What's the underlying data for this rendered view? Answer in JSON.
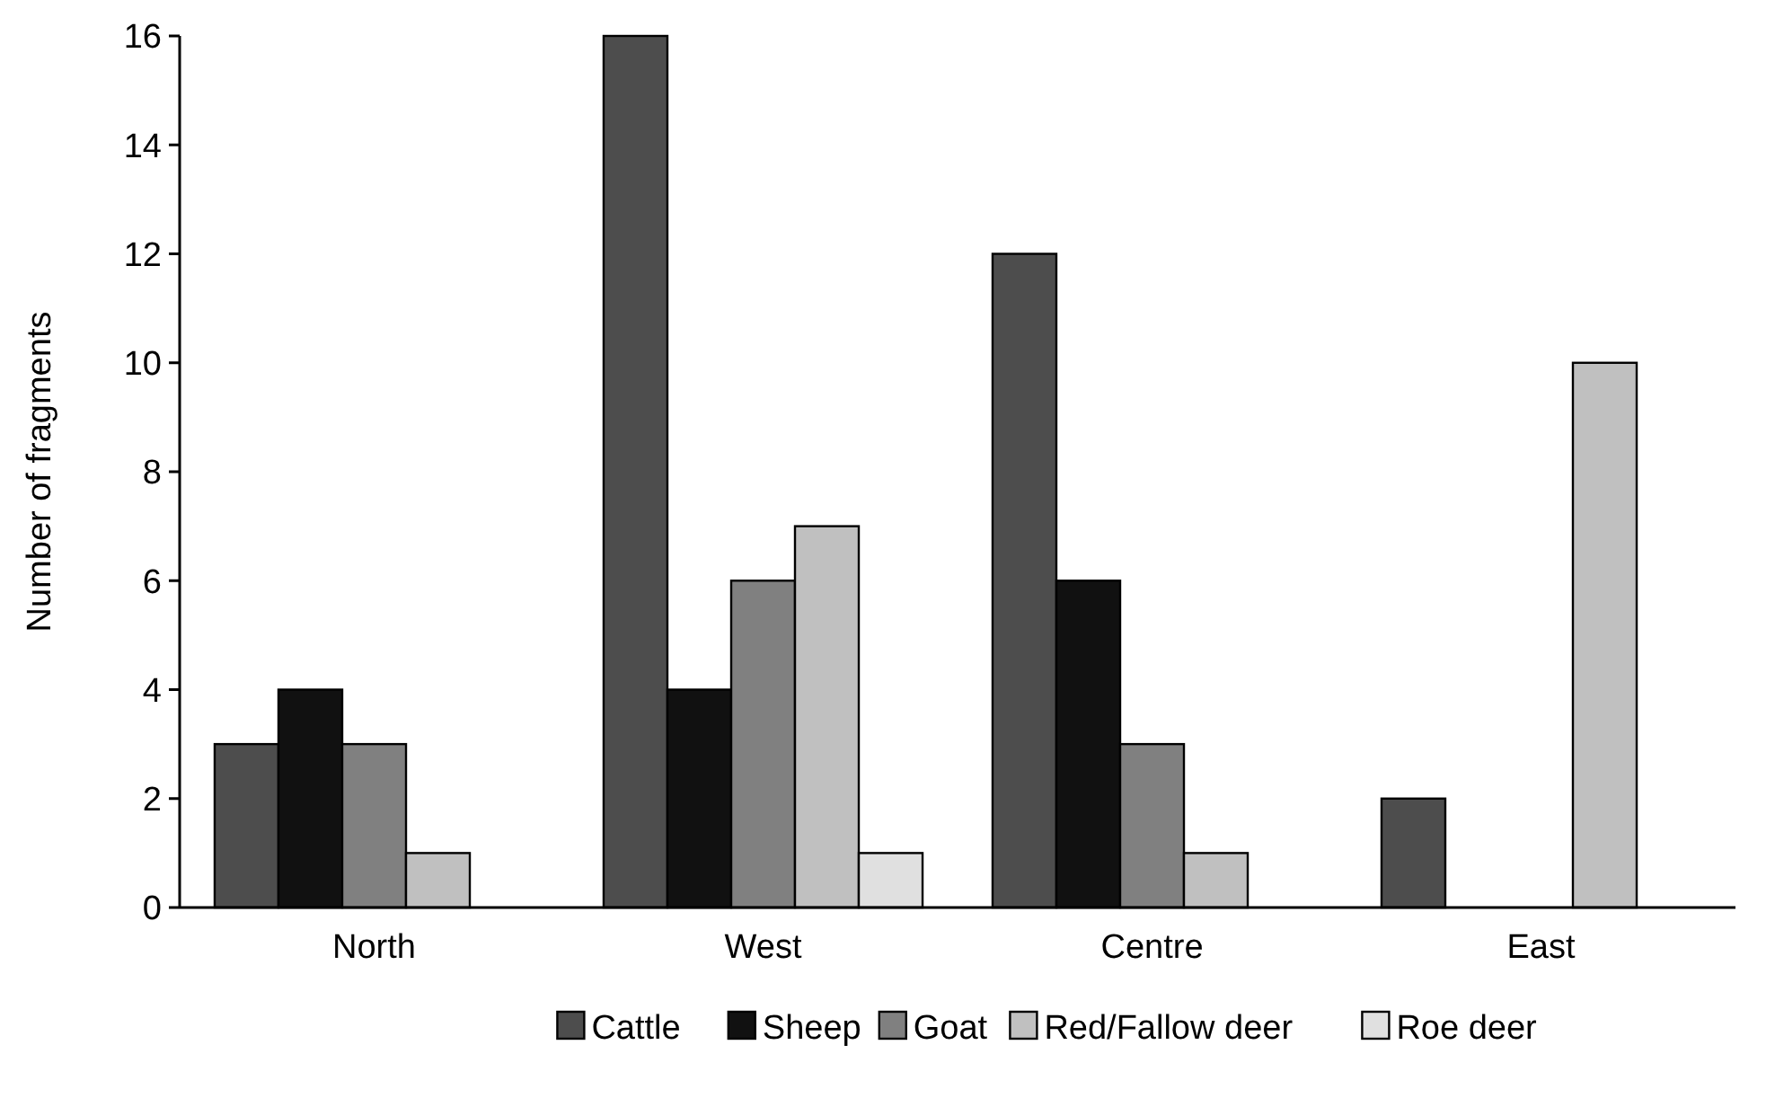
{
  "chart_data": {
    "type": "bar",
    "ylabel": "Number of fragments",
    "categories": [
      "North",
      "West",
      "Centre",
      "East"
    ],
    "series": [
      {
        "name": "Cattle",
        "color": "#4d4d4d",
        "values": [
          3,
          16,
          12,
          2
        ]
      },
      {
        "name": "Sheep",
        "color": "#111111",
        "values": [
          4,
          4,
          6,
          0
        ]
      },
      {
        "name": "Goat",
        "color": "#808080",
        "values": [
          3,
          6,
          3,
          0
        ]
      },
      {
        "name": "Red/Fallow deer",
        "color": "#c0c0c0",
        "values": [
          1,
          7,
          1,
          10
        ]
      },
      {
        "name": "Roe deer",
        "color": "#e0e0e0",
        "values": [
          0,
          1,
          0,
          0
        ]
      }
    ],
    "ylim": [
      0,
      16
    ],
    "yticks": [
      0,
      2,
      4,
      6,
      8,
      10,
      12,
      14,
      16
    ],
    "grid": false,
    "legend": "bottom"
  }
}
